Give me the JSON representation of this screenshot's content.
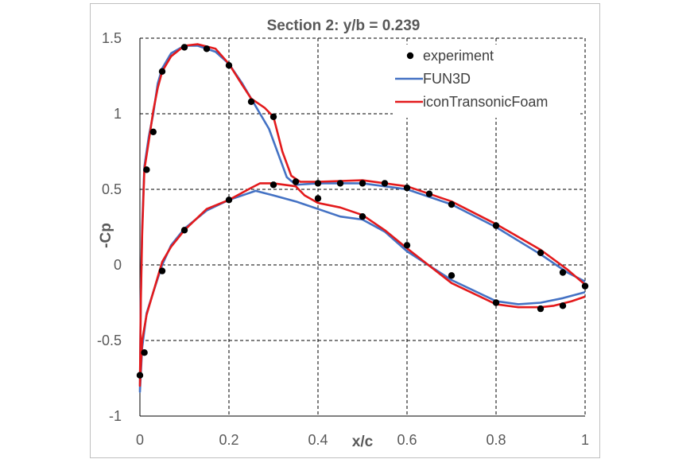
{
  "chart_data": {
    "type": "line",
    "title": "Section 2: y/b = 0.239",
    "xlabel": "x/c",
    "ylabel": "-Cp",
    "xlim": [
      0,
      1
    ],
    "ylim": [
      -1,
      1.5
    ],
    "x_ticks": [
      "0",
      "0.2",
      "0.4",
      "0.6",
      "0.8",
      "1"
    ],
    "y_ticks": [
      "1.5",
      "1",
      "0.5",
      "0",
      "-0.5",
      "-1"
    ],
    "grid": "dashed",
    "legend_position": "top-right",
    "series": [
      {
        "name": "experiment",
        "kind": "marker",
        "color": "#000000",
        "points": [
          [
            0.0,
            -0.73
          ],
          [
            0.01,
            -0.58
          ],
          [
            0.05,
            -0.04
          ],
          [
            0.1,
            0.23
          ],
          [
            0.2,
            0.43
          ],
          [
            0.3,
            0.53
          ],
          [
            0.4,
            0.44
          ],
          [
            0.5,
            0.32
          ],
          [
            0.6,
            0.13
          ],
          [
            0.7,
            -0.07
          ],
          [
            0.8,
            -0.25
          ],
          [
            0.9,
            -0.29
          ],
          [
            0.95,
            -0.27
          ],
          [
            1.0,
            -0.14
          ],
          [
            0.015,
            0.63
          ],
          [
            0.03,
            0.88
          ],
          [
            0.05,
            1.28
          ],
          [
            0.1,
            1.44
          ],
          [
            0.15,
            1.43
          ],
          [
            0.2,
            1.32
          ],
          [
            0.25,
            1.08
          ],
          [
            0.3,
            0.98
          ],
          [
            0.35,
            0.55
          ],
          [
            0.4,
            0.54
          ],
          [
            0.45,
            0.54
          ],
          [
            0.5,
            0.54
          ],
          [
            0.55,
            0.54
          ],
          [
            0.6,
            0.51
          ],
          [
            0.65,
            0.47
          ],
          [
            0.7,
            0.4
          ],
          [
            0.8,
            0.26
          ],
          [
            0.9,
            0.08
          ],
          [
            0.95,
            -0.05
          ]
        ]
      },
      {
        "name": "FUN3D",
        "kind": "line",
        "color": "#4472c4",
        "points": [
          [
            1.0,
            -0.18
          ],
          [
            0.95,
            -0.22
          ],
          [
            0.9,
            -0.25
          ],
          [
            0.85,
            -0.26
          ],
          [
            0.8,
            -0.24
          ],
          [
            0.7,
            -0.1
          ],
          [
            0.6,
            0.09
          ],
          [
            0.55,
            0.22
          ],
          [
            0.5,
            0.3
          ],
          [
            0.45,
            0.32
          ],
          [
            0.4,
            0.37
          ],
          [
            0.35,
            0.42
          ],
          [
            0.3,
            0.46
          ],
          [
            0.26,
            0.49
          ],
          [
            0.2,
            0.43
          ],
          [
            0.15,
            0.36
          ],
          [
            0.1,
            0.24
          ],
          [
            0.07,
            0.13
          ],
          [
            0.05,
            0.0
          ],
          [
            0.03,
            -0.18
          ],
          [
            0.015,
            -0.32
          ],
          [
            0.005,
            -0.55
          ],
          [
            0.0,
            -0.84
          ],
          [
            0.002,
            -0.2
          ],
          [
            0.005,
            0.25
          ],
          [
            0.01,
            0.65
          ],
          [
            0.02,
            0.85
          ],
          [
            0.03,
            1.0
          ],
          [
            0.04,
            1.2
          ],
          [
            0.05,
            1.3
          ],
          [
            0.07,
            1.4
          ],
          [
            0.1,
            1.45
          ],
          [
            0.13,
            1.45
          ],
          [
            0.17,
            1.41
          ],
          [
            0.2,
            1.33
          ],
          [
            0.23,
            1.2
          ],
          [
            0.25,
            1.1
          ],
          [
            0.27,
            1.0
          ],
          [
            0.29,
            0.9
          ],
          [
            0.31,
            0.74
          ],
          [
            0.33,
            0.58
          ],
          [
            0.35,
            0.53
          ],
          [
            0.4,
            0.54
          ],
          [
            0.5,
            0.54
          ],
          [
            0.6,
            0.5
          ],
          [
            0.7,
            0.4
          ],
          [
            0.8,
            0.25
          ],
          [
            0.9,
            0.07
          ],
          [
            0.96,
            -0.05
          ],
          [
            1.0,
            -0.11
          ]
        ]
      },
      {
        "name": "iconTransonicFoam",
        "kind": "line",
        "color": "#e31a1c",
        "points": [
          [
            1.0,
            -0.21
          ],
          [
            0.97,
            -0.24
          ],
          [
            0.93,
            -0.27
          ],
          [
            0.9,
            -0.28
          ],
          [
            0.85,
            -0.28
          ],
          [
            0.8,
            -0.26
          ],
          [
            0.7,
            -0.12
          ],
          [
            0.6,
            0.11
          ],
          [
            0.55,
            0.23
          ],
          [
            0.5,
            0.33
          ],
          [
            0.45,
            0.38
          ],
          [
            0.4,
            0.41
          ],
          [
            0.37,
            0.46
          ],
          [
            0.35,
            0.52
          ],
          [
            0.3,
            0.54
          ],
          [
            0.27,
            0.54
          ],
          [
            0.25,
            0.51
          ],
          [
            0.2,
            0.43
          ],
          [
            0.15,
            0.37
          ],
          [
            0.1,
            0.23
          ],
          [
            0.07,
            0.12
          ],
          [
            0.05,
            0.02
          ],
          [
            0.03,
            -0.18
          ],
          [
            0.015,
            -0.33
          ],
          [
            0.005,
            -0.5
          ],
          [
            0.0,
            -0.8
          ],
          [
            0.002,
            -0.25
          ],
          [
            0.005,
            0.2
          ],
          [
            0.01,
            0.63
          ],
          [
            0.02,
            0.82
          ],
          [
            0.03,
            1.02
          ],
          [
            0.04,
            1.17
          ],
          [
            0.05,
            1.28
          ],
          [
            0.07,
            1.38
          ],
          [
            0.1,
            1.45
          ],
          [
            0.13,
            1.46
          ],
          [
            0.17,
            1.43
          ],
          [
            0.2,
            1.33
          ],
          [
            0.23,
            1.19
          ],
          [
            0.25,
            1.1
          ],
          [
            0.28,
            1.04
          ],
          [
            0.3,
            0.98
          ],
          [
            0.32,
            0.75
          ],
          [
            0.34,
            0.59
          ],
          [
            0.36,
            0.55
          ],
          [
            0.4,
            0.55
          ],
          [
            0.5,
            0.56
          ],
          [
            0.6,
            0.52
          ],
          [
            0.7,
            0.42
          ],
          [
            0.8,
            0.27
          ],
          [
            0.9,
            0.1
          ],
          [
            0.96,
            -0.03
          ],
          [
            1.0,
            -0.13
          ]
        ]
      }
    ]
  }
}
